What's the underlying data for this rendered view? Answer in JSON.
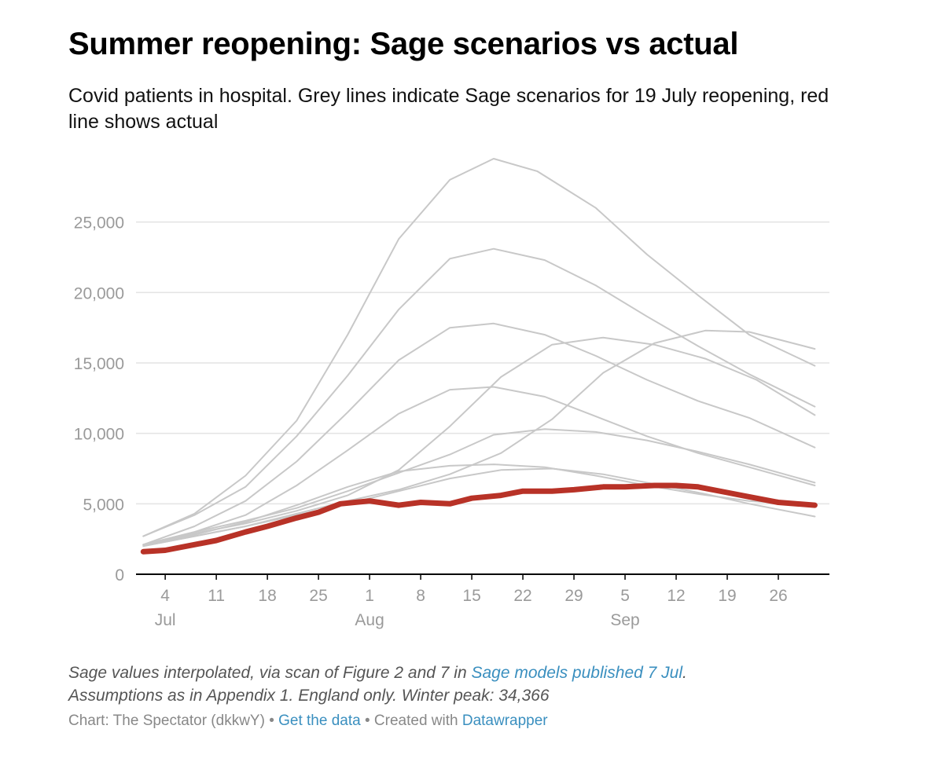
{
  "header": {
    "title": "Summer reopening: Sage scenarios vs actual",
    "subtitle": "Covid patients in hospital. Grey lines indicate Sage scenarios for 19 July reopening, red line shows actual"
  },
  "chart_data": {
    "type": "line",
    "x_unit": "date (2021)",
    "ylim": [
      0,
      30000
    ],
    "y_ticks": [
      {
        "value": 0,
        "label": "0"
      },
      {
        "value": 5000,
        "label": "5,000"
      },
      {
        "value": 10000,
        "label": "10,000"
      },
      {
        "value": 15000,
        "label": "15,000"
      },
      {
        "value": 20000,
        "label": "20,000"
      },
      {
        "value": 25000,
        "label": "25,000"
      }
    ],
    "x_ticks": [
      {
        "date": "2021-07-04",
        "label": "4",
        "month": "Jul"
      },
      {
        "date": "2021-07-11",
        "label": "11",
        "month": ""
      },
      {
        "date": "2021-07-18",
        "label": "18",
        "month": ""
      },
      {
        "date": "2021-07-25",
        "label": "25",
        "month": ""
      },
      {
        "date": "2021-08-01",
        "label": "1",
        "month": "Aug"
      },
      {
        "date": "2021-08-08",
        "label": "8",
        "month": ""
      },
      {
        "date": "2021-08-15",
        "label": "15",
        "month": ""
      },
      {
        "date": "2021-08-22",
        "label": "22",
        "month": ""
      },
      {
        "date": "2021-08-29",
        "label": "29",
        "month": ""
      },
      {
        "date": "2021-09-05",
        "label": "5",
        "month": "Sep"
      },
      {
        "date": "2021-09-12",
        "label": "12",
        "month": ""
      },
      {
        "date": "2021-09-19",
        "label": "19",
        "month": ""
      },
      {
        "date": "2021-09-26",
        "label": "26",
        "month": ""
      }
    ],
    "x_range": [
      "2021-06-30",
      "2021-10-03"
    ],
    "grid": "horizontal",
    "colors": {
      "scenario": "#c8c8c8",
      "actual": "#b83227",
      "grid": "#e3e3e3",
      "axis": "#000000"
    },
    "series": [
      {
        "role": "scenario",
        "points": [
          [
            "2021-07-01",
            2700
          ],
          [
            "2021-07-08",
            4300
          ],
          [
            "2021-07-15",
            7000
          ],
          [
            "2021-07-22",
            10900
          ],
          [
            "2021-07-29",
            17000
          ],
          [
            "2021-08-05",
            23800
          ],
          [
            "2021-08-12",
            28000
          ],
          [
            "2021-08-18",
            29500
          ],
          [
            "2021-08-24",
            28600
          ],
          [
            "2021-09-01",
            26000
          ],
          [
            "2021-09-08",
            22700
          ],
          [
            "2021-09-15",
            19800
          ],
          [
            "2021-09-22",
            17000
          ],
          [
            "2021-10-01",
            14800
          ]
        ]
      },
      {
        "role": "scenario",
        "points": [
          [
            "2021-07-01",
            2700
          ],
          [
            "2021-07-08",
            4200
          ],
          [
            "2021-07-15",
            6200
          ],
          [
            "2021-07-22",
            9800
          ],
          [
            "2021-07-29",
            14100
          ],
          [
            "2021-08-05",
            18800
          ],
          [
            "2021-08-12",
            22400
          ],
          [
            "2021-08-18",
            23100
          ],
          [
            "2021-08-25",
            22300
          ],
          [
            "2021-09-01",
            20500
          ],
          [
            "2021-09-08",
            18300
          ],
          [
            "2021-09-15",
            16200
          ],
          [
            "2021-09-22",
            14200
          ],
          [
            "2021-10-01",
            11900
          ]
        ]
      },
      {
        "role": "scenario",
        "points": [
          [
            "2021-07-01",
            2100
          ],
          [
            "2021-07-08",
            3400
          ],
          [
            "2021-07-15",
            5200
          ],
          [
            "2021-07-22",
            8000
          ],
          [
            "2021-07-29",
            11500
          ],
          [
            "2021-08-05",
            15200
          ],
          [
            "2021-08-12",
            17500
          ],
          [
            "2021-08-18",
            17800
          ],
          [
            "2021-08-25",
            17000
          ],
          [
            "2021-09-01",
            15500
          ],
          [
            "2021-09-08",
            13800
          ],
          [
            "2021-09-15",
            12300
          ],
          [
            "2021-09-22",
            11100
          ],
          [
            "2021-10-01",
            9000
          ]
        ]
      },
      {
        "role": "scenario",
        "points": [
          [
            "2021-07-01",
            2100
          ],
          [
            "2021-07-08",
            3000
          ],
          [
            "2021-07-15",
            4200
          ],
          [
            "2021-07-22",
            6300
          ],
          [
            "2021-07-29",
            8800
          ],
          [
            "2021-08-05",
            11400
          ],
          [
            "2021-08-12",
            13100
          ],
          [
            "2021-08-18",
            13300
          ],
          [
            "2021-08-25",
            12600
          ],
          [
            "2021-09-01",
            11200
          ],
          [
            "2021-09-08",
            9800
          ],
          [
            "2021-09-15",
            8600
          ],
          [
            "2021-09-22",
            7600
          ],
          [
            "2021-10-01",
            6300
          ]
        ]
      },
      {
        "role": "scenario",
        "points": [
          [
            "2021-07-01",
            2100
          ],
          [
            "2021-07-08",
            2800
          ],
          [
            "2021-07-15",
            3700
          ],
          [
            "2021-07-22",
            4900
          ],
          [
            "2021-07-29",
            6200
          ],
          [
            "2021-08-05",
            7300
          ],
          [
            "2021-08-12",
            7700
          ],
          [
            "2021-08-18",
            7800
          ],
          [
            "2021-08-25",
            7600
          ],
          [
            "2021-09-01",
            7000
          ],
          [
            "2021-09-08",
            6300
          ],
          [
            "2021-09-15",
            5700
          ],
          [
            "2021-09-22",
            5200
          ],
          [
            "2021-10-01",
            4900
          ]
        ]
      },
      {
        "role": "scenario",
        "points": [
          [
            "2021-07-01",
            2100
          ],
          [
            "2021-07-08",
            3000
          ],
          [
            "2021-07-15",
            3800
          ],
          [
            "2021-07-22",
            4700
          ],
          [
            "2021-07-29",
            5900
          ],
          [
            "2021-08-05",
            7200
          ],
          [
            "2021-08-12",
            8500
          ],
          [
            "2021-08-18",
            9900
          ],
          [
            "2021-08-25",
            10300
          ],
          [
            "2021-09-01",
            10100
          ],
          [
            "2021-09-08",
            9500
          ],
          [
            "2021-09-15",
            8700
          ],
          [
            "2021-09-22",
            7800
          ],
          [
            "2021-10-01",
            6500
          ]
        ]
      },
      {
        "role": "scenario",
        "points": [
          [
            "2021-07-01",
            2100
          ],
          [
            "2021-07-08",
            2900
          ],
          [
            "2021-07-15",
            3600
          ],
          [
            "2021-07-22",
            4500
          ],
          [
            "2021-07-29",
            5600
          ],
          [
            "2021-08-05",
            7400
          ],
          [
            "2021-08-12",
            10500
          ],
          [
            "2021-08-19",
            14000
          ],
          [
            "2021-08-26",
            16300
          ],
          [
            "2021-09-02",
            16800
          ],
          [
            "2021-09-09",
            16300
          ],
          [
            "2021-09-16",
            15300
          ],
          [
            "2021-09-23",
            13800
          ],
          [
            "2021-10-01",
            11300
          ]
        ]
      },
      {
        "role": "scenario",
        "points": [
          [
            "2021-07-01",
            2000
          ],
          [
            "2021-07-08",
            2700
          ],
          [
            "2021-07-15",
            3400
          ],
          [
            "2021-07-22",
            4300
          ],
          [
            "2021-07-29",
            5200
          ],
          [
            "2021-08-05",
            6000
          ],
          [
            "2021-08-12",
            7100
          ],
          [
            "2021-08-19",
            8600
          ],
          [
            "2021-08-26",
            11000
          ],
          [
            "2021-09-02",
            14300
          ],
          [
            "2021-09-09",
            16400
          ],
          [
            "2021-09-16",
            17300
          ],
          [
            "2021-09-22",
            17200
          ],
          [
            "2021-10-01",
            16000
          ]
        ]
      },
      {
        "role": "scenario",
        "points": [
          [
            "2021-07-01",
            2000
          ],
          [
            "2021-07-08",
            2700
          ],
          [
            "2021-07-15",
            3400
          ],
          [
            "2021-07-22",
            4200
          ],
          [
            "2021-07-29",
            5000
          ],
          [
            "2021-08-05",
            5900
          ],
          [
            "2021-08-12",
            6800
          ],
          [
            "2021-08-19",
            7400
          ],
          [
            "2021-08-26",
            7500
          ],
          [
            "2021-09-02",
            7100
          ],
          [
            "2021-09-09",
            6400
          ],
          [
            "2021-09-16",
            5700
          ],
          [
            "2021-09-22",
            5000
          ],
          [
            "2021-10-01",
            4100
          ]
        ]
      },
      {
        "role": "actual",
        "points": [
          [
            "2021-07-01",
            1600
          ],
          [
            "2021-07-04",
            1700
          ],
          [
            "2021-07-08",
            2100
          ],
          [
            "2021-07-11",
            2400
          ],
          [
            "2021-07-15",
            3000
          ],
          [
            "2021-07-18",
            3400
          ],
          [
            "2021-07-22",
            4000
          ],
          [
            "2021-07-25",
            4400
          ],
          [
            "2021-07-28",
            5000
          ],
          [
            "2021-08-01",
            5200
          ],
          [
            "2021-08-05",
            4900
          ],
          [
            "2021-08-08",
            5100
          ],
          [
            "2021-08-12",
            5000
          ],
          [
            "2021-08-15",
            5400
          ],
          [
            "2021-08-19",
            5600
          ],
          [
            "2021-08-22",
            5900
          ],
          [
            "2021-08-26",
            5900
          ],
          [
            "2021-08-29",
            6000
          ],
          [
            "2021-09-02",
            6200
          ],
          [
            "2021-09-05",
            6200
          ],
          [
            "2021-09-09",
            6300
          ],
          [
            "2021-09-12",
            6300
          ],
          [
            "2021-09-15",
            6200
          ],
          [
            "2021-09-19",
            5800
          ],
          [
            "2021-09-22",
            5500
          ],
          [
            "2021-09-26",
            5100
          ],
          [
            "2021-10-01",
            4900
          ]
        ]
      }
    ]
  },
  "footer": {
    "note_prefix": "Sage values interpolated, via scan of Figure 2 and 7 in ",
    "note_link": "Sage models published 7 Jul",
    "note_suffix": ".",
    "note_line2": "Assumptions as in Appendix 1. England only. Winter peak: 34,366",
    "credit_prefix": "Chart: The Spectator (dkkwY) • ",
    "credit_link_data": "Get the data",
    "credit_mid": " • Created with ",
    "credit_link_dw": "Datawrapper"
  }
}
